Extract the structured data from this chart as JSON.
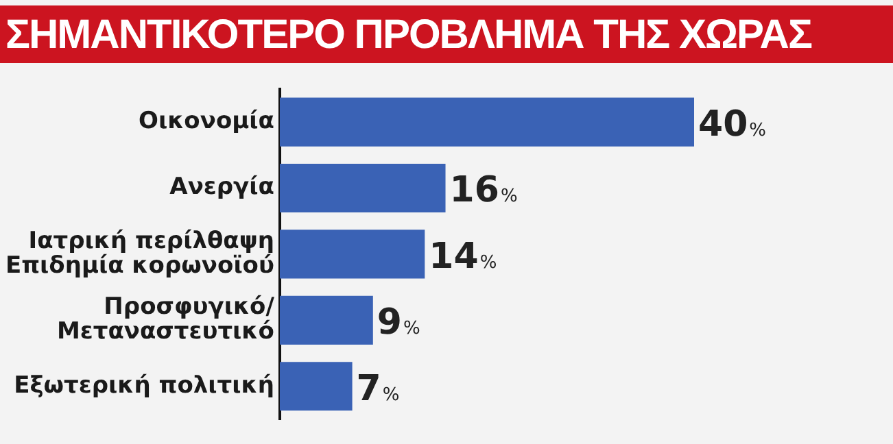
{
  "chart_data": {
    "type": "bar",
    "orientation": "horizontal",
    "title": "ΣΗΜΑΝΤΙΚΟΤΕΡΟ ΠΡΟΒΛΗΜΑ ΤΗΣ ΧΩΡΑΣ",
    "categories": [
      "Οικονομία",
      "Ανεργία",
      "Ιατρική περίλθαψη\nΕπιδημία κορωνοϊού",
      "Προσφυγικό/\nΜεταναστευτικό",
      "Εξωτερική πολιτική"
    ],
    "values": [
      40,
      16,
      14,
      9,
      7
    ],
    "color": "#3a62b5",
    "value_labels": [
      "40%",
      "16%",
      "14%",
      "9%",
      "7%"
    ],
    "grid": false,
    "legend": false
  }
}
